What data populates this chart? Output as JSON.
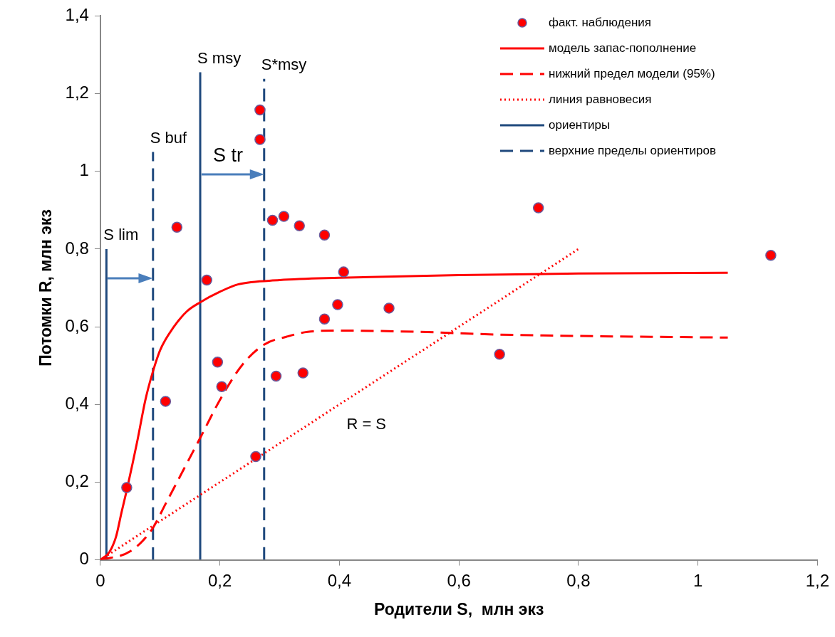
{
  "chart_data": {
    "type": "scatter",
    "xlabel": "Родители S,  млн экз",
    "ylabel": "Потомки R, млн экз",
    "xlim": [
      0,
      1.2
    ],
    "ylim": [
      0,
      1.4
    ],
    "xticks": [
      0,
      {
        "value": 0.2,
        "label": "0,2"
      },
      {
        "value": 0.4,
        "label": "0,4"
      },
      {
        "value": 0.6,
        "label": "0,6"
      },
      {
        "value": 0.8,
        "label": "0,8"
      },
      1,
      {
        "value": 1.2,
        "label": "1,2"
      }
    ],
    "yticks": [
      0,
      {
        "value": 0.2,
        "label": "0,2"
      },
      {
        "value": 0.4,
        "label": "0,4"
      },
      {
        "value": 0.6,
        "label": "0,6"
      },
      {
        "value": 0.8,
        "label": "0,8"
      },
      1,
      {
        "value": 1.2,
        "label": "1,2"
      },
      {
        "value": 1.4,
        "label": "1,4"
      }
    ],
    "grid": false,
    "legend": "top right",
    "series": [
      {
        "name": "факт. наблюдения",
        "type": "scatter",
        "marker": "circle",
        "color": "#ff0000",
        "x": [
          0.044,
          0.109,
          0.128,
          0.178,
          0.196,
          0.203,
          0.26,
          0.267,
          0.267,
          0.288,
          0.307,
          0.333,
          0.294,
          0.339,
          0.375,
          0.375,
          0.397,
          0.407,
          0.483,
          0.668,
          0.733,
          1.122
        ],
        "values": [
          0.186,
          0.408,
          0.856,
          0.72,
          0.509,
          0.446,
          0.266,
          1.082,
          1.158,
          0.874,
          0.884,
          0.86,
          0.473,
          0.481,
          0.836,
          0.62,
          0.657,
          0.741,
          0.648,
          0.529,
          0.906,
          0.784
        ]
      },
      {
        "name": "модель запас-пополнение",
        "type": "line",
        "marker": "none",
        "line_style": "solid",
        "color": "#ff0000",
        "x": [
          0,
          0.015,
          0.026,
          0.035,
          0.045,
          0.062,
          0.075,
          0.086,
          0.1,
          0.122,
          0.145,
          0.167,
          0.2,
          0.23,
          0.3,
          0.4,
          0.6,
          0.8,
          1.05
        ],
        "values": [
          0,
          0.02,
          0.059,
          0.12,
          0.186,
          0.308,
          0.41,
          0.475,
          0.54,
          0.598,
          0.64,
          0.663,
          0.69,
          0.709,
          0.72,
          0.726,
          0.733,
          0.737,
          0.739
        ]
      },
      {
        "name": "нижний предел модели (95%)",
        "type": "line",
        "marker": "none",
        "line_style": "dashed",
        "color": "#ff0000",
        "x": [
          0,
          0.05,
          0.086,
          0.11,
          0.167,
          0.203,
          0.239,
          0.275,
          0.311,
          0.347,
          0.399,
          0.531,
          0.663,
          1.05
        ],
        "values": [
          0,
          0.022,
          0.078,
          0.147,
          0.314,
          0.42,
          0.505,
          0.555,
          0.574,
          0.587,
          0.59,
          0.587,
          0.58,
          0.572
        ]
      },
      {
        "name": "линия равновесия",
        "type": "line",
        "marker": "none",
        "line_style": "dotted",
        "color": "#ff0000",
        "x": [
          0,
          0.8
        ],
        "values": [
          0,
          0.8
        ]
      },
      {
        "name": "ориентиры",
        "type": "line",
        "marker": "none",
        "line_style": "solid",
        "color": "#1f497d",
        "x": [
          0.01,
          0.01,
          null,
          0.167,
          0.167
        ],
        "values": [
          0,
          0.8,
          null,
          0,
          1.255
        ]
      },
      {
        "name": "верхние пределы ориентиров",
        "type": "line",
        "marker": "none",
        "line_style": "dashed",
        "color": "#1f497d",
        "x": [
          0.088,
          0.088,
          null,
          0.274,
          0.274
        ],
        "values": [
          0,
          1.05,
          null,
          0,
          1.238
        ]
      }
    ],
    "annotations": [
      "S lim",
      "S buf",
      "S msy",
      "S*msy",
      "S tr",
      "R = S"
    ]
  }
}
